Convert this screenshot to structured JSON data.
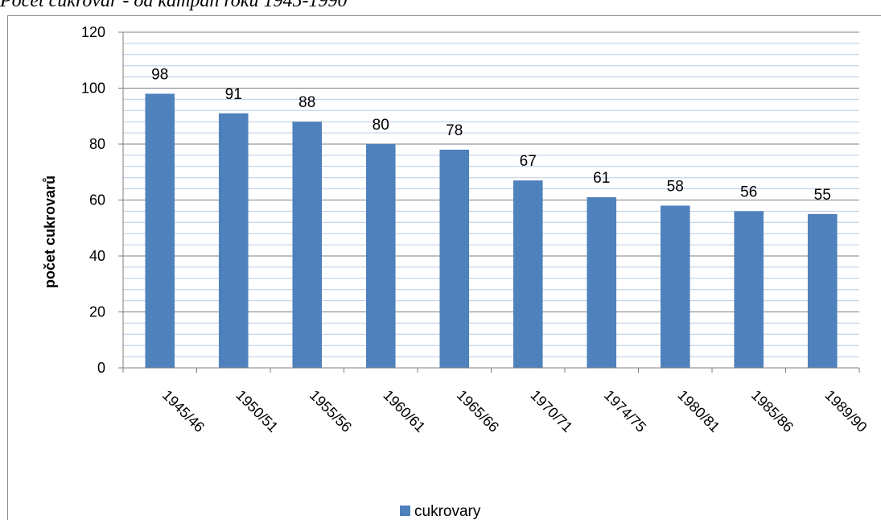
{
  "caption": "Počet cukrovar - od kampaň roku 1945-1990",
  "chart_data": {
    "type": "bar",
    "title": "",
    "xlabel": "",
    "ylabel": "počet cukrovarů",
    "ylim": [
      0,
      120
    ],
    "yticks": [
      0,
      20,
      40,
      60,
      80,
      100,
      120
    ],
    "minor_grid_step": 4,
    "grid": true,
    "legend_position": "bottom",
    "categories": [
      "1945/46",
      "1950/51",
      "1955/56",
      "1960/61",
      "1965/66",
      "1970/71",
      "1974/75",
      "1980/81",
      "1985/86",
      "1989/90"
    ],
    "series": [
      {
        "name": "cukrovary",
        "color": "#4f81bd",
        "values": [
          98,
          91,
          88,
          80,
          78,
          67,
          61,
          58,
          56,
          55
        ]
      }
    ]
  }
}
